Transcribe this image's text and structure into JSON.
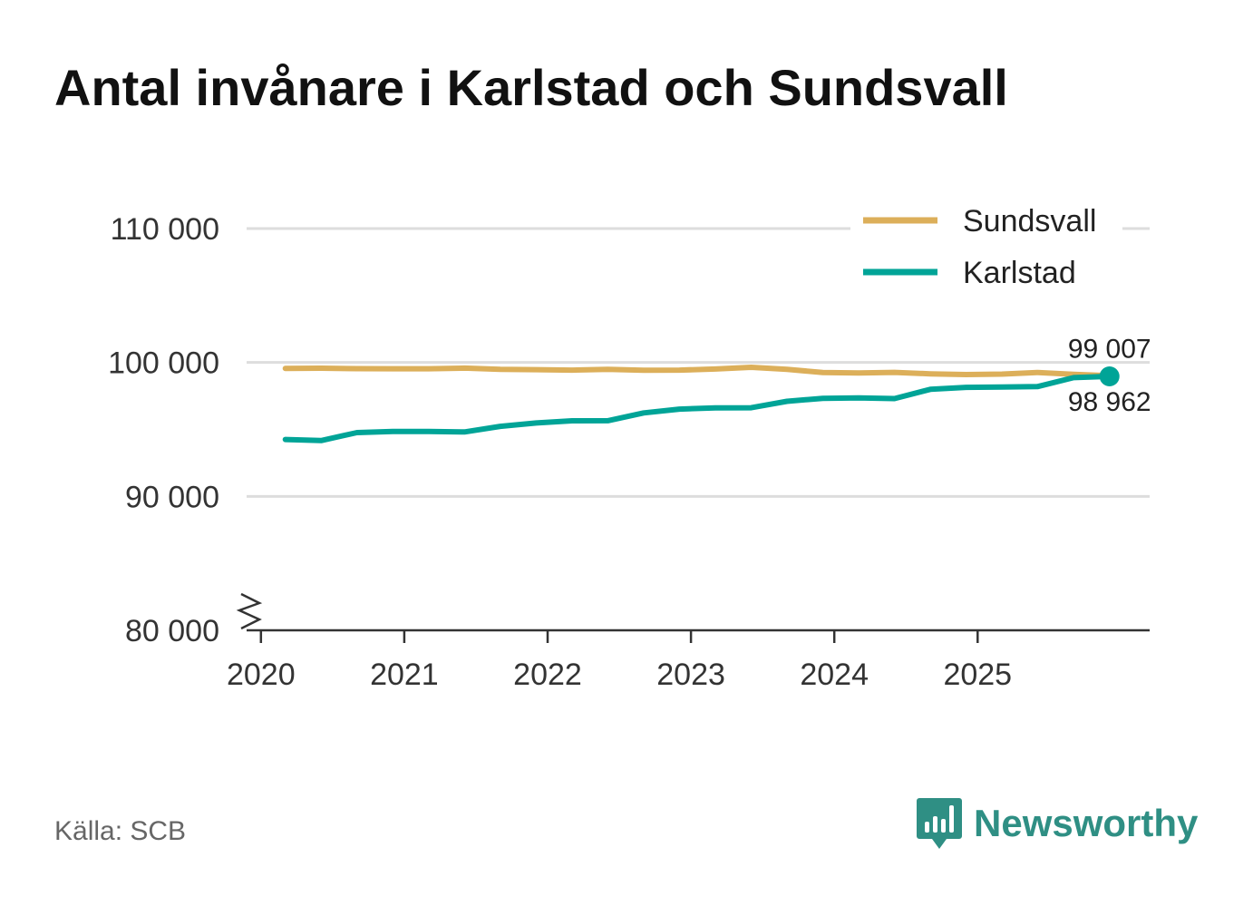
{
  "title": "Antal invånare i Karlstad och Sundsvall",
  "source": "Källa: SCB",
  "brand": {
    "name": "Newsworthy",
    "icon": "newsworthy-logo-icon"
  },
  "colors": {
    "sundsvall": "#dcaf5a",
    "karlstad": "#00a497",
    "grid": "#dddddd",
    "axis": "#333333",
    "brand": "#2f8f84"
  },
  "chart_data": {
    "type": "line",
    "title": "Antal invånare i Karlstad och Sundsvall",
    "xlabel": "",
    "ylabel": "",
    "ylim": [
      80000,
      110000
    ],
    "yticks": [
      80000,
      90000,
      100000,
      110000
    ],
    "ytick_labels": [
      "80 000",
      "90 000",
      "100 000",
      "110 000"
    ],
    "xticks": [
      2020,
      2021,
      2022,
      2023,
      2024,
      2025
    ],
    "xtick_labels": [
      "2020",
      "2021",
      "2022",
      "2023",
      "2024",
      "2025"
    ],
    "xlim": [
      2019.9,
      2026.2
    ],
    "axis_break": true,
    "grid": true,
    "legend_position": "top-right",
    "x": [
      2020.17,
      2020.42,
      2020.67,
      2020.92,
      2021.17,
      2021.42,
      2021.67,
      2021.92,
      2022.17,
      2022.42,
      2022.67,
      2022.92,
      2023.17,
      2023.42,
      2023.67,
      2023.92,
      2024.17,
      2024.42,
      2024.67,
      2024.92,
      2025.17,
      2025.42,
      2025.67,
      2025.92
    ],
    "series": [
      {
        "name": "Sundsvall",
        "color": "#dcaf5a",
        "values": [
          99560,
          99570,
          99540,
          99530,
          99530,
          99580,
          99480,
          99460,
          99430,
          99480,
          99420,
          99430,
          99510,
          99640,
          99480,
          99250,
          99210,
          99260,
          99150,
          99100,
          99130,
          99250,
          99110,
          99007
        ],
        "end_label": "99 007"
      },
      {
        "name": "Karlstad",
        "color": "#00a497",
        "values": [
          94250,
          94170,
          94760,
          94850,
          94850,
          94810,
          95230,
          95480,
          95640,
          95650,
          96230,
          96520,
          96610,
          96620,
          97100,
          97320,
          97350,
          97300,
          97990,
          98140,
          98170,
          98200,
          98870,
          98962
        ],
        "end_label": "98 962"
      }
    ]
  }
}
